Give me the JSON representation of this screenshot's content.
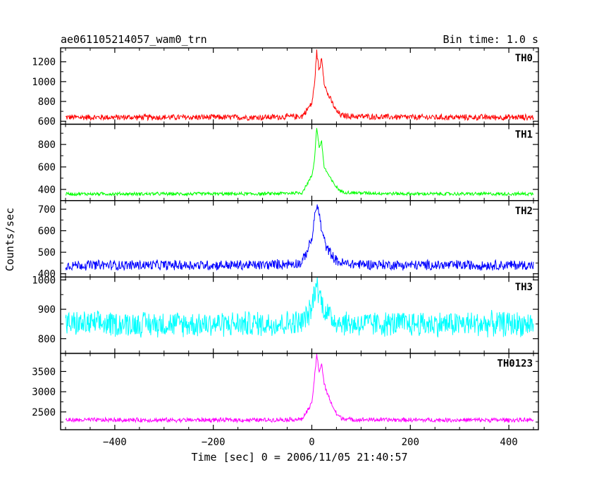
{
  "chart_data": {
    "type": "line",
    "title_left": "ae061105214057_wam0_trn",
    "title_right": "Bin time: 1.0 s",
    "xlabel": "Time [sec] 0 = 2006/11/05 21:40:57",
    "ylabel": "Counts/sec",
    "xlim": [
      -510,
      460
    ],
    "xticks": [
      -400,
      -200,
      0,
      200,
      400
    ],
    "grid": false,
    "series": [
      {
        "name": "TH0",
        "color": "#ff0000",
        "ylim": [
          570,
          1340
        ],
        "yticks": [
          600,
          800,
          1000,
          1200
        ],
        "baseline": 640,
        "noise": 28,
        "x": [
          -500,
          -300,
          -100,
          -20,
          0,
          5,
          10,
          15,
          20,
          25,
          30,
          40,
          50,
          60,
          80,
          200,
          450
        ],
        "y": [
          640,
          640,
          640,
          650,
          780,
          950,
          1300,
          1100,
          1250,
          1000,
          900,
          800,
          700,
          660,
          650,
          640,
          640
        ]
      },
      {
        "name": "TH1",
        "color": "#00ff00",
        "ylim": [
          300,
          980
        ],
        "yticks": [
          400,
          600,
          800
        ],
        "baseline": 360,
        "noise": 14,
        "x": [
          -500,
          -300,
          -100,
          -20,
          0,
          5,
          10,
          15,
          20,
          25,
          30,
          40,
          50,
          60,
          80,
          200,
          450
        ],
        "y": [
          360,
          360,
          360,
          370,
          520,
          650,
          950,
          780,
          820,
          600,
          560,
          480,
          420,
          380,
          370,
          360,
          360
        ]
      },
      {
        "name": "TH2",
        "color": "#0000ff",
        "ylim": [
          385,
          740
        ],
        "yticks": [
          400,
          500,
          600,
          700
        ],
        "baseline": 440,
        "noise": 22,
        "x": [
          -500,
          -300,
          -100,
          -20,
          0,
          5,
          10,
          15,
          20,
          25,
          30,
          40,
          50,
          60,
          80,
          200,
          450
        ],
        "y": [
          440,
          440,
          440,
          450,
          560,
          650,
          720,
          680,
          600,
          560,
          520,
          490,
          460,
          450,
          445,
          440,
          440
        ]
      },
      {
        "name": "TH3",
        "color": "#00ffff",
        "ylim": [
          750,
          1010
        ],
        "yticks": [
          800,
          900,
          1000
        ],
        "baseline": 850,
        "noise": 40,
        "x": [
          -500,
          -300,
          -100,
          -20,
          0,
          5,
          10,
          15,
          20,
          25,
          30,
          40,
          50,
          60,
          80,
          200,
          450
        ],
        "y": [
          850,
          850,
          850,
          855,
          900,
          960,
          990,
          950,
          930,
          900,
          890,
          870,
          860,
          855,
          850,
          850,
          850
        ]
      },
      {
        "name": "TH0123",
        "color": "#ff00ff",
        "ylim": [
          2060,
          3950
        ],
        "yticks": [
          2500,
          3000,
          3500
        ],
        "baseline": 2300,
        "noise": 50,
        "x": [
          -500,
          -300,
          -100,
          -20,
          0,
          5,
          10,
          15,
          20,
          25,
          30,
          40,
          50,
          60,
          80,
          200,
          450
        ],
        "y": [
          2300,
          2300,
          2300,
          2320,
          2700,
          3300,
          3900,
          3500,
          3700,
          3200,
          3000,
          2700,
          2450,
          2350,
          2310,
          2300,
          2300
        ]
      }
    ]
  }
}
